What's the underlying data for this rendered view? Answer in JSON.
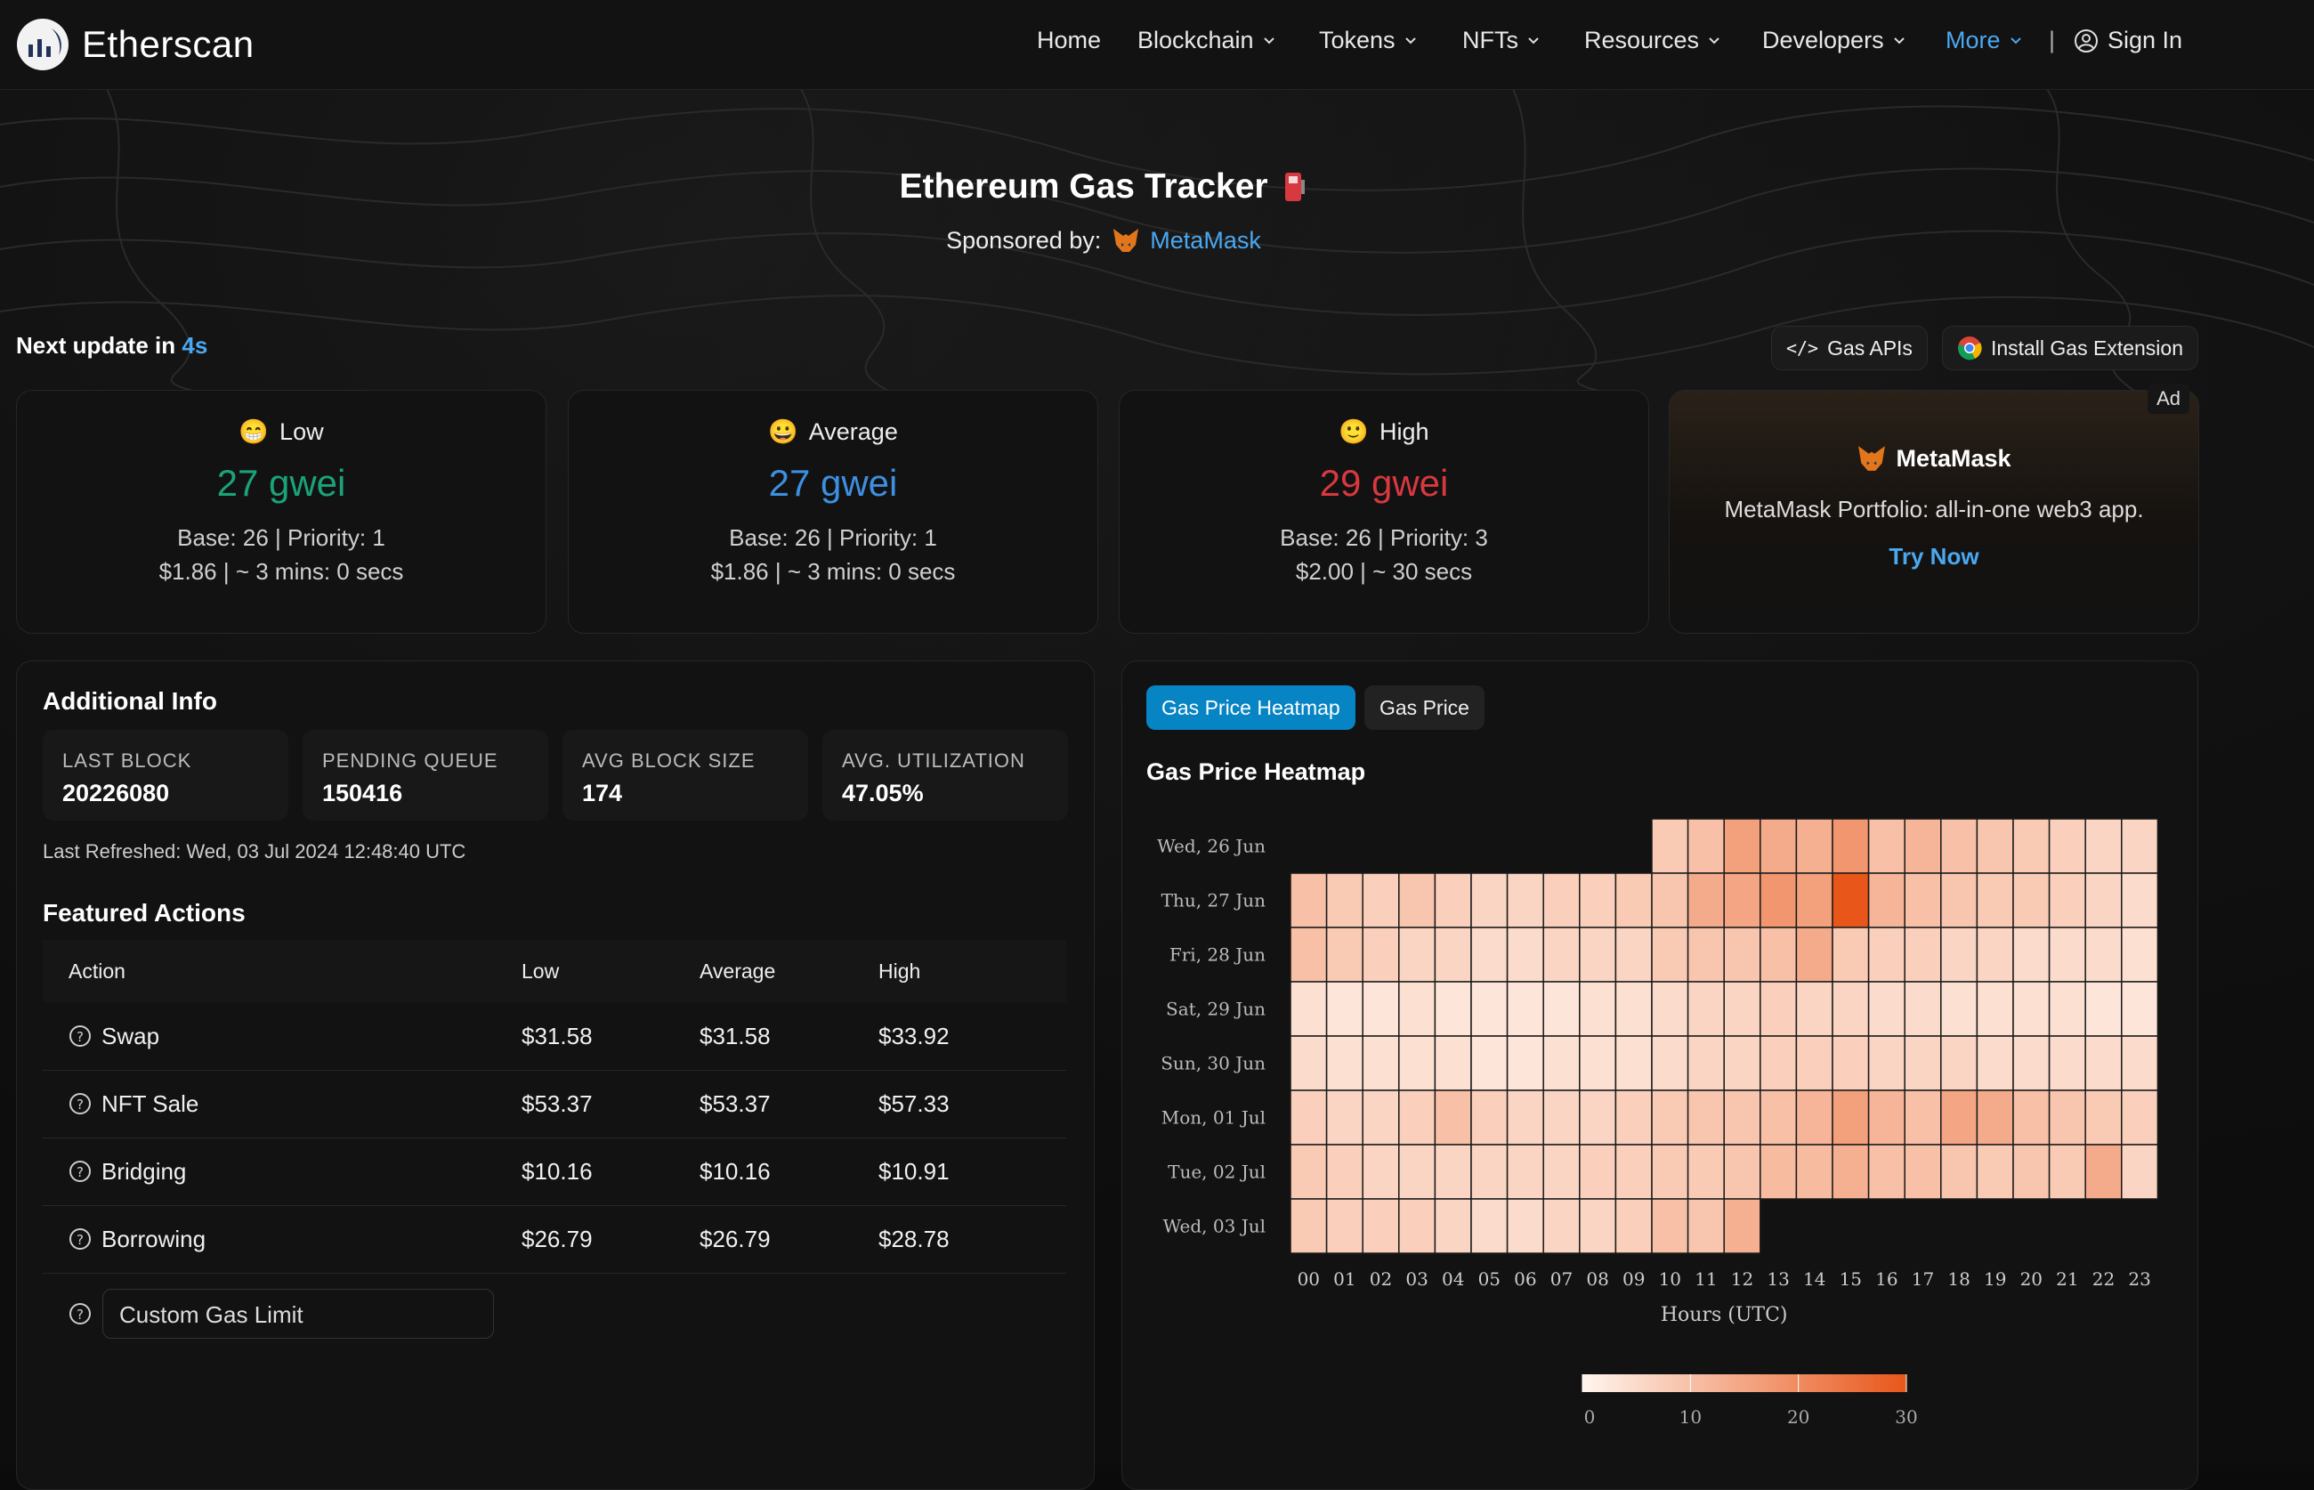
{
  "nav": {
    "brand": "Etherscan",
    "items": [
      "Home",
      "Blockchain",
      "Tokens",
      "NFTs",
      "Resources",
      "Developers",
      "More"
    ],
    "signin": "Sign In"
  },
  "header": {
    "title": "Ethereum Gas Tracker",
    "sponsor_label": "Sponsored by:",
    "sponsor_name": "MetaMask"
  },
  "update": {
    "label": "Next update in",
    "value": "4s"
  },
  "buttons": {
    "gas_apis": "Gas APIs",
    "extension": "Install Gas Extension"
  },
  "gas": [
    {
      "label": "Low",
      "gwei": "27 gwei",
      "color": "#1aa37a",
      "base": "Base: 26 | Priority: 1",
      "cost": "$1.86 | ~ 3 mins: 0 secs"
    },
    {
      "label": "Average",
      "gwei": "27 gwei",
      "color": "#3d8fe0",
      "base": "Base: 26 | Priority: 1",
      "cost": "$1.86 | ~ 3 mins: 0 secs"
    },
    {
      "label": "High",
      "gwei": "29 gwei",
      "color": "#d8383f",
      "base": "Base: 26 | Priority: 3",
      "cost": "$2.00 | ~ 30 secs"
    }
  ],
  "ad": {
    "tag": "Ad",
    "name": "MetaMask",
    "text": "MetaMask Portfolio: all-in-one web3 app.",
    "cta": "Try Now"
  },
  "info": {
    "title": "Additional Info",
    "stats": [
      {
        "label": "LAST BLOCK",
        "value": "20226080"
      },
      {
        "label": "PENDING QUEUE",
        "value": "150416"
      },
      {
        "label": "AVG BLOCK SIZE",
        "value": "174"
      },
      {
        "label": "AVG. UTILIZATION",
        "value": "47.05%"
      }
    ],
    "refreshed": "Last Refreshed: Wed, 03 Jul 2024 12:48:40 UTC"
  },
  "actions": {
    "title": "Featured Actions",
    "headers": [
      "Action",
      "Low",
      "Average",
      "High"
    ],
    "rows": [
      {
        "name": "Swap",
        "low": "$31.58",
        "avg": "$31.58",
        "high": "$33.92"
      },
      {
        "name": "NFT Sale",
        "low": "$53.37",
        "avg": "$53.37",
        "high": "$57.33"
      },
      {
        "name": "Bridging",
        "low": "$10.16",
        "avg": "$10.16",
        "high": "$10.91"
      },
      {
        "name": "Borrowing",
        "low": "$26.79",
        "avg": "$26.79",
        "high": "$28.78"
      }
    ],
    "custom_placeholder": "Custom Gas Limit"
  },
  "heatmap_tabs": {
    "active": "Gas Price Heatmap",
    "inactive": "Gas Price"
  },
  "chart_data": {
    "type": "heatmap",
    "title": "Gas Price Heatmap",
    "xlabel": "Hours (UTC)",
    "x": [
      "00",
      "01",
      "02",
      "03",
      "04",
      "05",
      "06",
      "07",
      "08",
      "09",
      "10",
      "11",
      "12",
      "13",
      "14",
      "15",
      "16",
      "17",
      "18",
      "19",
      "20",
      "21",
      "22",
      "23"
    ],
    "y": [
      "Wed, 26 Jun",
      "Thu, 27 Jun",
      "Fri, 28 Jun",
      "Sat, 29 Jun",
      "Sun, 30 Jun",
      "Mon, 01 Jul",
      "Tue, 02 Jul",
      "Wed, 03 Jul"
    ],
    "values": [
      [
        null,
        null,
        null,
        null,
        null,
        null,
        null,
        null,
        null,
        null,
        8,
        10,
        16,
        14,
        13,
        18,
        10,
        12,
        10,
        9,
        8,
        7,
        6,
        6
      ],
      [
        10,
        8,
        7,
        9,
        7,
        6,
        6,
        7,
        7,
        8,
        9,
        14,
        15,
        18,
        16,
        30,
        12,
        10,
        9,
        8,
        8,
        7,
        6,
        5
      ],
      [
        10,
        8,
        7,
        6,
        6,
        5,
        5,
        6,
        6,
        6,
        8,
        9,
        9,
        10,
        14,
        8,
        7,
        7,
        6,
        6,
        5,
        5,
        5,
        4
      ],
      [
        4,
        3,
        3,
        4,
        3,
        3,
        3,
        3,
        4,
        4,
        5,
        6,
        6,
        7,
        6,
        6,
        5,
        5,
        4,
        4,
        4,
        4,
        3,
        3
      ],
      [
        5,
        4,
        4,
        4,
        4,
        3,
        3,
        4,
        4,
        4,
        5,
        6,
        6,
        7,
        7,
        7,
        6,
        6,
        6,
        5,
        5,
        5,
        5,
        5
      ],
      [
        7,
        6,
        6,
        7,
        10,
        7,
        6,
        6,
        6,
        7,
        8,
        9,
        9,
        10,
        12,
        16,
        12,
        10,
        15,
        14,
        10,
        9,
        8,
        7
      ],
      [
        8,
        7,
        6,
        6,
        6,
        6,
        6,
        6,
        7,
        7,
        8,
        8,
        9,
        11,
        11,
        13,
        10,
        10,
        9,
        8,
        9,
        8,
        14,
        6
      ],
      [
        8,
        7,
        7,
        7,
        6,
        5,
        5,
        6,
        6,
        7,
        10,
        9,
        13,
        null,
        null,
        null,
        null,
        null,
        null,
        null,
        null,
        null,
        null,
        null
      ]
    ],
    "color_scale": {
      "min": 0,
      "max": 30,
      "low_color": "#fff5ee",
      "high_color": "#e8561a",
      "ticks": [
        0,
        10,
        20,
        30
      ]
    }
  }
}
